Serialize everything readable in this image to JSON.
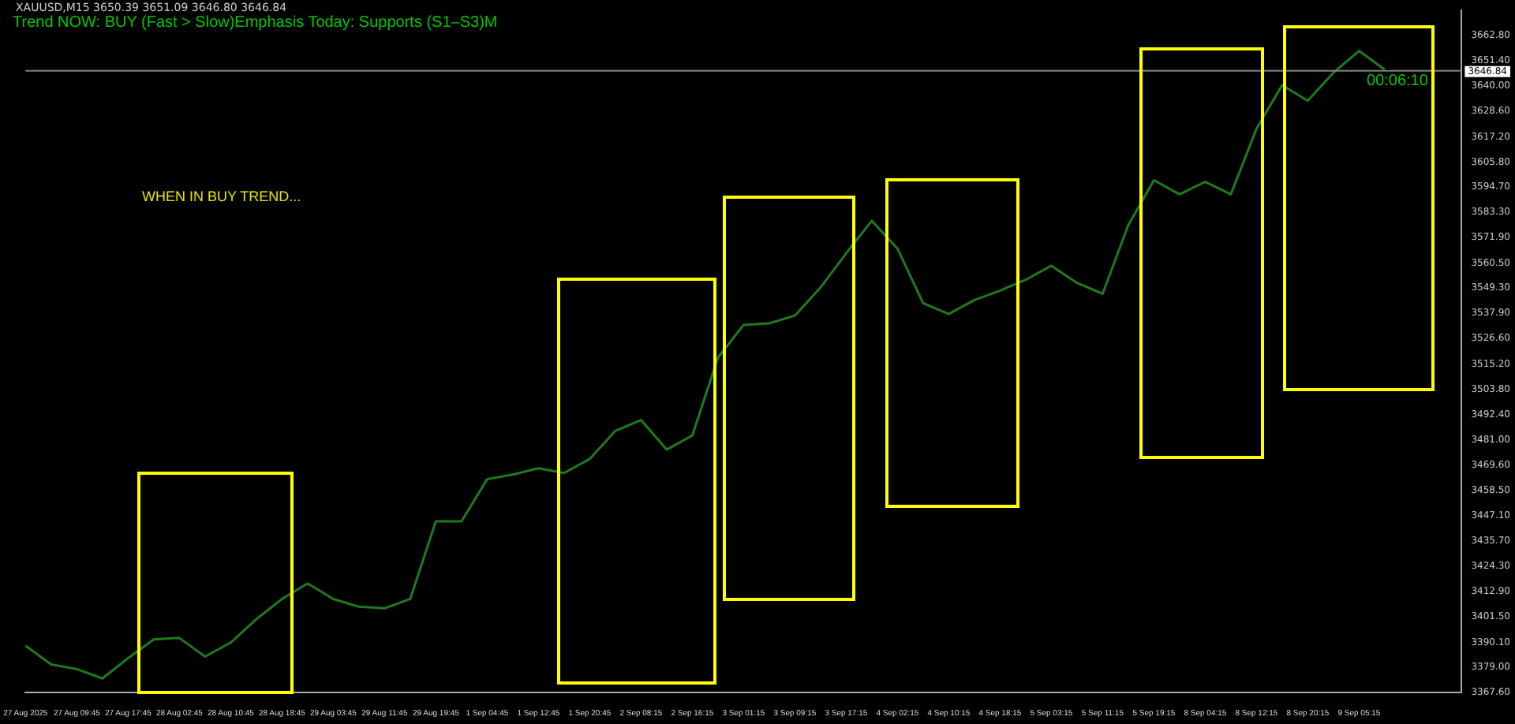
{
  "chart_data": {
    "type": "line",
    "subtitle": "XAUUSD,M15 3650.39 3651.09 3646.80 3646.84",
    "title": "Trend NOW: BUY (Fast > Slow)Emphasis Today: Supports (S1–S3)M",
    "annotations": [
      "WHEN IN BUY TREND...",
      "00:06:10"
    ],
    "categories": [
      "27 Aug 2025",
      null,
      "27 Aug 09:45",
      null,
      "27 Aug 17:45",
      null,
      "28 Aug 02:45",
      null,
      "28 Aug 10:45",
      null,
      "28 Aug 18:45",
      null,
      "29 Aug 03:45",
      null,
      "29 Aug 11:45",
      null,
      "29 Aug 19:45",
      null,
      "1 Sep 04:45",
      null,
      "1 Sep 12:45",
      null,
      "1 Sep 20:45",
      null,
      "2 Sep 08:15",
      null,
      "2 Sep 16:15",
      null,
      "3 Sep 01:15",
      null,
      "3 Sep 09:15",
      null,
      "3 Sep 17:15",
      null,
      "4 Sep 02:15",
      null,
      "4 Sep 10:15",
      null,
      "4 Sep 18:15",
      null,
      "5 Sep 03:15",
      null,
      "5 Sep 11:15",
      null,
      "5 Sep 19:15",
      null,
      "8 Sep 04:15",
      null,
      "8 Sep 12:15",
      null,
      "8 Sep 20:15",
      null,
      "9 Sep 05:15",
      null,
      null,
      null,
      null
    ],
    "series": [
      {
        "color": "#1f7a1f",
        "values": [
          3388.6,
          3380.2,
          3378.1,
          3373.9,
          3383.0,
          3391.4,
          3392.1,
          3383.7,
          3390.0,
          3400.5,
          3409.6,
          3416.6,
          3409.6,
          3406.1,
          3405.4,
          3409.6,
          3444.5,
          3444.5,
          3463.4,
          3465.5,
          3468.3,
          3466.2,
          3472.5,
          3485.1,
          3490.0,
          3476.7,
          3483.0,
          3518.0,
          3532.7,
          3533.4,
          3536.9,
          3549.5,
          3564.9,
          3579.5,
          3567.0,
          3542.5,
          3537.6,
          3543.9,
          3548.1,
          3553.0,
          3559.3,
          3551.6,
          3546.7,
          3577.5,
          3597.7,
          3591.4,
          3597.0,
          3591.4,
          3620.8,
          3640.4,
          3633.4,
          3646.0,
          3655.8,
          3647.4,
          null,
          null,
          null
        ]
      }
    ],
    "ylim": [
      3367.6,
      3674
    ],
    "yticks": [
      {
        "value": 3367.6,
        "label": "3367.60"
      },
      {
        "value": 3379.0,
        "label": "3379.00"
      },
      {
        "value": 3390.1,
        "label": "3390.10"
      },
      {
        "value": 3401.5,
        "label": "3401.50"
      },
      {
        "value": 3412.9,
        "label": "3412.90"
      },
      {
        "value": 3424.3,
        "label": "3424.30"
      },
      {
        "value": 3435.7,
        "label": "3435.70"
      },
      {
        "value": 3447.1,
        "label": "3447.10"
      },
      {
        "value": 3458.5,
        "label": "3458.50"
      },
      {
        "value": 3469.6,
        "label": "3469.60"
      },
      {
        "value": 3481.0,
        "label": "3481.00"
      },
      {
        "value": 3492.4,
        "label": "3492.40"
      },
      {
        "value": 3503.8,
        "label": "3503.80"
      },
      {
        "value": 3515.2,
        "label": "3515.20"
      },
      {
        "value": 3526.6,
        "label": "3526.60"
      },
      {
        "value": 3537.9,
        "label": "3537.90"
      },
      {
        "value": 3549.3,
        "label": "3549.30"
      },
      {
        "value": 3560.5,
        "label": "3560.50"
      },
      {
        "value": 3571.9,
        "label": "3571.90"
      },
      {
        "value": 3583.3,
        "label": "3583.30"
      },
      {
        "value": 3594.7,
        "label": "3594.70"
      },
      {
        "value": 3605.8,
        "label": "3605.80"
      },
      {
        "value": 3617.2,
        "label": "3617.20"
      },
      {
        "value": 3628.6,
        "label": "3628.60"
      },
      {
        "value": 3640.0,
        "label": "3640.00"
      },
      {
        "value": 3651.4,
        "label": "3651.40"
      },
      {
        "value": 3662.8,
        "label": "3662.80"
      }
    ],
    "ref_lines": [
      {
        "axis": "y",
        "value": 3646.84,
        "label": "3646.84",
        "color": "#808080"
      }
    ],
    "marker": "none",
    "line_style": "solid",
    "legend": false,
    "grid": false
  }
}
